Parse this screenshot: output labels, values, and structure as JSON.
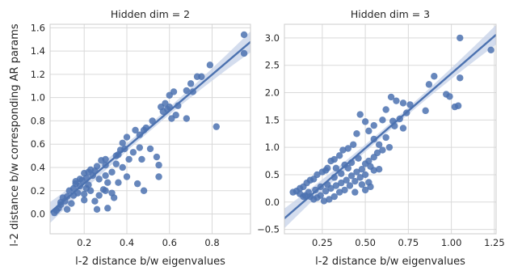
{
  "figure": {
    "ylabel": "l-2 distance b/w corresponding AR params"
  },
  "colors": {
    "background": "#ffffff",
    "grid": "#d9d9d9",
    "frame": "#cccccc",
    "point": "#4c72b0",
    "regression_line": "#4c72b0",
    "confidence_band": "#c9d5ea"
  },
  "chart_data": [
    {
      "type": "scatter",
      "title": "Hidden dim = 2",
      "xlabel": "l-2 distance b/w eigenvalues",
      "ylabel": "l-2 distance b/w corresponding AR params",
      "xlim": [
        0.04,
        0.98
      ],
      "ylim": [
        -0.17,
        1.63
      ],
      "xticks": [
        0.2,
        0.4,
        0.6,
        0.8
      ],
      "xtick_labels": [
        "0.2",
        "0.4",
        "0.6",
        "0.8"
      ],
      "yticks": [
        0.0,
        0.2,
        0.4,
        0.6,
        0.8,
        1.0,
        1.2,
        1.4,
        1.6
      ],
      "ytick_labels": [
        "0.0",
        "0.2",
        "0.4",
        "0.6",
        "0.8",
        "1.0",
        "1.2",
        "1.4",
        "1.6"
      ],
      "grid": true,
      "regression": {
        "slope": 1.56,
        "intercept": -0.05,
        "band_halfwidth": 0.05
      },
      "points": [
        [
          0.95,
          1.54
        ],
        [
          0.95,
          1.38
        ],
        [
          0.79,
          1.28
        ],
        [
          0.75,
          1.18
        ],
        [
          0.73,
          1.18
        ],
        [
          0.7,
          1.12
        ],
        [
          0.68,
          1.06
        ],
        [
          0.71,
          1.05
        ],
        [
          0.62,
          1.05
        ],
        [
          0.6,
          1.02
        ],
        [
          0.58,
          0.95
        ],
        [
          0.6,
          0.92
        ],
        [
          0.64,
          0.93
        ],
        [
          0.56,
          0.92
        ],
        [
          0.59,
          0.9
        ],
        [
          0.57,
          0.88
        ],
        [
          0.63,
          0.85
        ],
        [
          0.61,
          0.82
        ],
        [
          0.52,
          0.8
        ],
        [
          0.68,
          0.82
        ],
        [
          0.82,
          0.75
        ],
        [
          0.49,
          0.74
        ],
        [
          0.48,
          0.72
        ],
        [
          0.46,
          0.68
        ],
        [
          0.44,
          0.72
        ],
        [
          0.4,
          0.66
        ],
        [
          0.38,
          0.61
        ],
        [
          0.39,
          0.56
        ],
        [
          0.37,
          0.55
        ],
        [
          0.36,
          0.51
        ],
        [
          0.35,
          0.5
        ],
        [
          0.3,
          0.47
        ],
        [
          0.28,
          0.46
        ],
        [
          0.3,
          0.42
        ],
        [
          0.26,
          0.41
        ],
        [
          0.23,
          0.38
        ],
        [
          0.25,
          0.37
        ],
        [
          0.22,
          0.36
        ],
        [
          0.2,
          0.35
        ],
        [
          0.24,
          0.33
        ],
        [
          0.21,
          0.31
        ],
        [
          0.18,
          0.3
        ],
        [
          0.19,
          0.29
        ],
        [
          0.16,
          0.26
        ],
        [
          0.15,
          0.22
        ],
        [
          0.13,
          0.2
        ],
        [
          0.12,
          0.15
        ],
        [
          0.1,
          0.14
        ],
        [
          0.11,
          0.11
        ],
        [
          0.09,
          0.08
        ],
        [
          0.08,
          0.05
        ],
        [
          0.07,
          0.03
        ],
        [
          0.06,
          0.01
        ],
        [
          0.14,
          0.09
        ],
        [
          0.15,
          0.16
        ],
        [
          0.17,
          0.18
        ],
        [
          0.2,
          0.17
        ],
        [
          0.22,
          0.25
        ],
        [
          0.27,
          0.3
        ],
        [
          0.3,
          0.33
        ],
        [
          0.31,
          0.27
        ],
        [
          0.33,
          0.36
        ],
        [
          0.35,
          0.43
        ],
        [
          0.38,
          0.4
        ],
        [
          0.41,
          0.47
        ],
        [
          0.43,
          0.53
        ],
        [
          0.46,
          0.57
        ],
        [
          0.51,
          0.56
        ],
        [
          0.47,
          0.47
        ],
        [
          0.54,
          0.49
        ],
        [
          0.55,
          0.42
        ],
        [
          0.48,
          0.2
        ],
        [
          0.55,
          0.32
        ],
        [
          0.45,
          0.26
        ],
        [
          0.4,
          0.32
        ],
        [
          0.36,
          0.27
        ],
        [
          0.33,
          0.18
        ],
        [
          0.31,
          0.05
        ],
        [
          0.26,
          0.04
        ],
        [
          0.25,
          0.11
        ],
        [
          0.27,
          0.16
        ],
        [
          0.23,
          0.2
        ],
        [
          0.21,
          0.22
        ],
        [
          0.18,
          0.24
        ],
        [
          0.16,
          0.28
        ],
        [
          0.3,
          0.2
        ],
        [
          0.29,
          0.21
        ],
        [
          0.34,
          0.14
        ],
        [
          0.2,
          0.12
        ],
        [
          0.12,
          0.04
        ],
        [
          0.09,
          0.1
        ]
      ]
    },
    {
      "type": "scatter",
      "title": "Hidden dim = 3",
      "xlabel": "l-2 distance b/w eigenvalues",
      "ylabel": "",
      "xlim": [
        0.03,
        1.26
      ],
      "ylim": [
        -0.58,
        3.25
      ],
      "xticks": [
        0.25,
        0.5,
        0.75,
        1.0,
        1.25
      ],
      "xtick_labels": [
        "0.25",
        "0.50",
        "0.75",
        "1.00",
        "1.25"
      ],
      "yticks": [
        -0.5,
        0.0,
        0.5,
        1.0,
        1.5,
        2.0,
        2.5,
        3.0
      ],
      "ytick_labels": [
        "−0.5",
        "0.0",
        "0.5",
        "1.0",
        "1.5",
        "2.0",
        "2.5",
        "3.0"
      ],
      "grid": true,
      "regression": {
        "slope": 2.73,
        "intercept": -0.38,
        "band_halfwidth": 0.1
      },
      "points": [
        [
          1.05,
          3.0
        ],
        [
          1.23,
          2.78
        ],
        [
          0.9,
          2.3
        ],
        [
          0.87,
          2.15
        ],
        [
          1.05,
          2.27
        ],
        [
          0.97,
          1.97
        ],
        [
          0.99,
          1.93
        ],
        [
          1.04,
          1.76
        ],
        [
          1.02,
          1.74
        ],
        [
          0.76,
          1.78
        ],
        [
          0.85,
          1.67
        ],
        [
          0.68,
          1.85
        ],
        [
          0.65,
          1.92
        ],
        [
          0.72,
          1.81
        ],
        [
          0.62,
          1.69
        ],
        [
          0.74,
          1.63
        ],
        [
          0.7,
          1.52
        ],
        [
          0.66,
          1.48
        ],
        [
          0.6,
          1.5
        ],
        [
          0.67,
          1.39
        ],
        [
          0.72,
          1.35
        ],
        [
          0.5,
          1.47
        ],
        [
          0.55,
          1.4
        ],
        [
          0.47,
          1.6
        ],
        [
          0.52,
          1.3
        ],
        [
          0.45,
          1.25
        ],
        [
          0.55,
          1.15
        ],
        [
          0.62,
          1.18
        ],
        [
          0.58,
          1.05
        ],
        [
          0.64,
          1.0
        ],
        [
          0.43,
          1.05
        ],
        [
          0.4,
          0.98
        ],
        [
          0.37,
          0.95
        ],
        [
          0.35,
          0.85
        ],
        [
          0.32,
          0.78
        ],
        [
          0.3,
          0.75
        ],
        [
          0.28,
          0.62
        ],
        [
          0.27,
          0.58
        ],
        [
          0.25,
          0.55
        ],
        [
          0.22,
          0.5
        ],
        [
          0.2,
          0.42
        ],
        [
          0.18,
          0.4
        ],
        [
          0.16,
          0.35
        ],
        [
          0.14,
          0.28
        ],
        [
          0.12,
          0.25
        ],
        [
          0.1,
          0.2
        ],
        [
          0.08,
          0.18
        ],
        [
          0.12,
          0.15
        ],
        [
          0.15,
          0.12
        ],
        [
          0.18,
          0.1
        ],
        [
          0.2,
          0.05
        ],
        [
          0.22,
          0.08
        ],
        [
          0.24,
          0.12
        ],
        [
          0.27,
          0.2
        ],
        [
          0.3,
          0.25
        ],
        [
          0.33,
          0.3
        ],
        [
          0.36,
          0.35
        ],
        [
          0.39,
          0.4
        ],
        [
          0.42,
          0.48
        ],
        [
          0.45,
          0.55
        ],
        [
          0.48,
          0.6
        ],
        [
          0.5,
          0.7
        ],
        [
          0.52,
          0.75
        ],
        [
          0.55,
          0.82
        ],
        [
          0.57,
          0.9
        ],
        [
          0.6,
          0.95
        ],
        [
          0.53,
          0.65
        ],
        [
          0.5,
          0.5
        ],
        [
          0.47,
          0.45
        ],
        [
          0.44,
          0.38
        ],
        [
          0.41,
          0.3
        ],
        [
          0.38,
          0.22
        ],
        [
          0.35,
          0.18
        ],
        [
          0.32,
          0.1
        ],
        [
          0.29,
          0.05
        ],
        [
          0.26,
          0.02
        ],
        [
          0.48,
          0.32
        ],
        [
          0.52,
          0.36
        ],
        [
          0.58,
          0.6
        ],
        [
          0.55,
          0.58
        ],
        [
          0.4,
          0.62
        ],
        [
          0.36,
          0.52
        ],
        [
          0.32,
          0.45
        ],
        [
          0.28,
          0.32
        ],
        [
          0.24,
          0.28
        ],
        [
          0.21,
          0.22
        ],
        [
          0.17,
          0.18
        ],
        [
          0.14,
          0.1
        ],
        [
          0.44,
          0.18
        ],
        [
          0.5,
          0.22
        ],
        [
          0.53,
          0.28
        ],
        [
          0.46,
          0.8
        ],
        [
          0.42,
          0.72
        ],
        [
          0.38,
          0.68
        ],
        [
          0.33,
          0.62
        ]
      ]
    }
  ]
}
